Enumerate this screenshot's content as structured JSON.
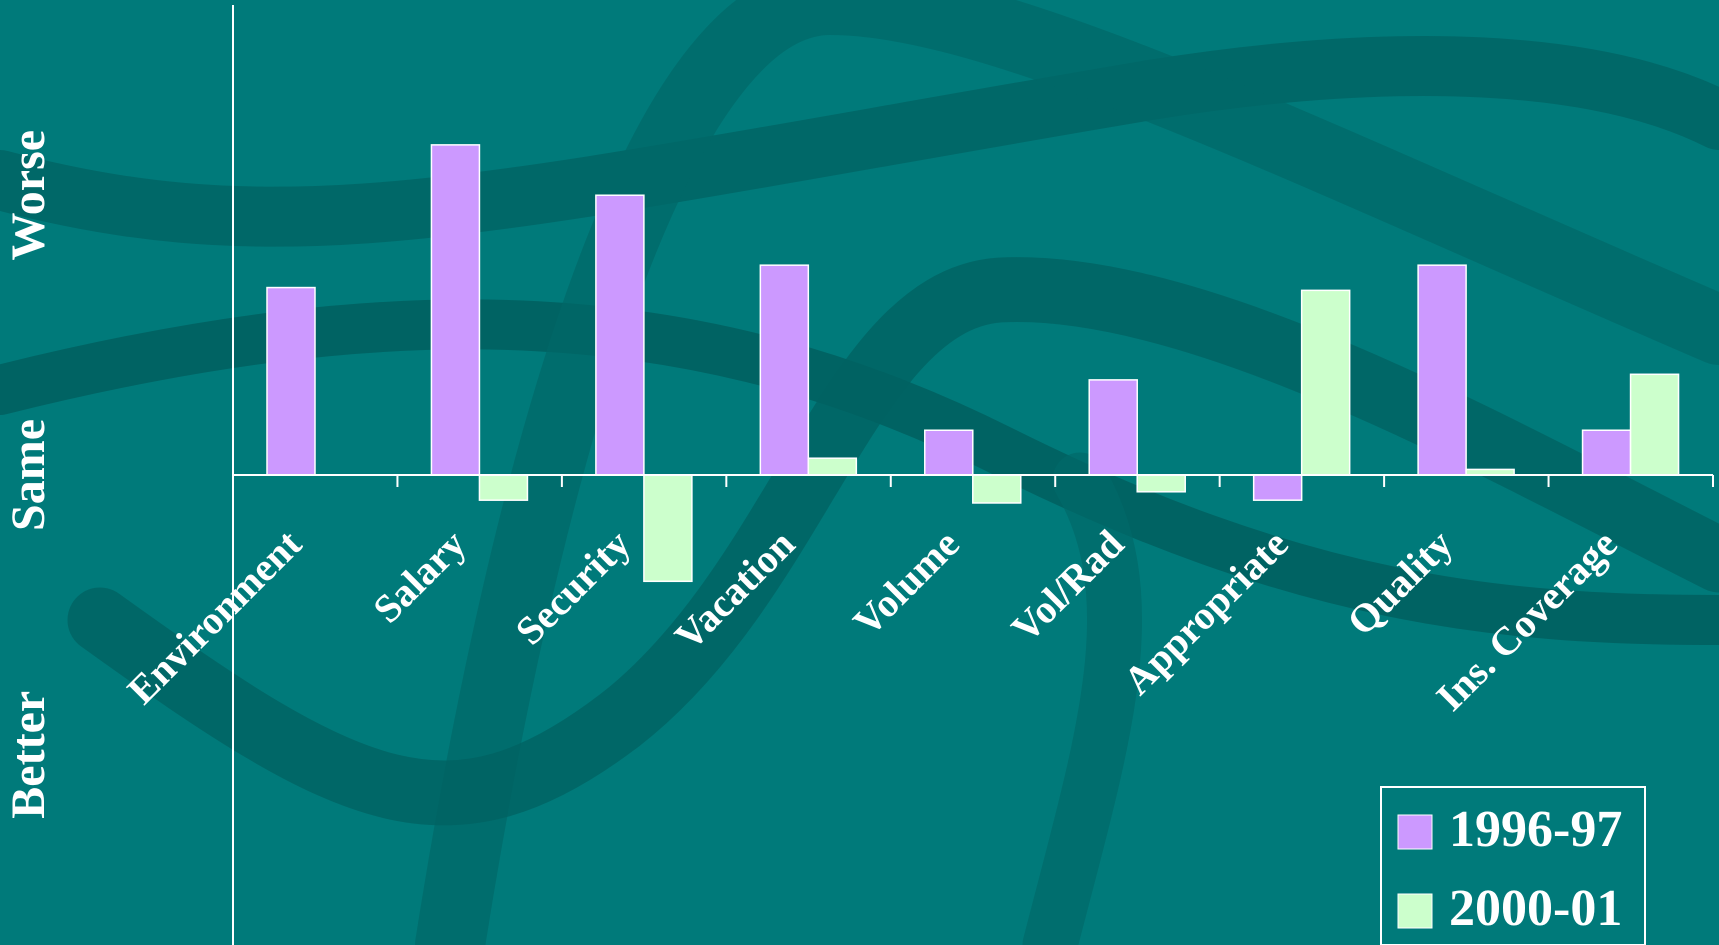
{
  "chart_data": {
    "type": "bar",
    "categories": [
      "Environment",
      "Salary",
      "Security",
      "Vacation",
      "Volume",
      "Vol/Rad",
      "Appropriate",
      "Quality",
      "Ins. Coverage"
    ],
    "series": [
      {
        "name": "1996-97",
        "color": "#cc99ff",
        "values": [
          0.67,
          1.18,
          1.0,
          0.75,
          0.16,
          0.34,
          -0.09,
          0.75,
          0.16
        ]
      },
      {
        "name": "2000-01",
        "color": "#ccffcc",
        "values": [
          0,
          -0.09,
          -0.38,
          0.06,
          -0.1,
          -0.06,
          0.66,
          0.02,
          0.36
        ]
      }
    ],
    "ylim": [
      -1.68,
      1.68
    ],
    "yticks": [
      {
        "value": -1,
        "label": "Better"
      },
      {
        "value": 0,
        "label": "Same"
      },
      {
        "value": 1,
        "label": "Worse"
      }
    ],
    "legend": "lower right"
  }
}
